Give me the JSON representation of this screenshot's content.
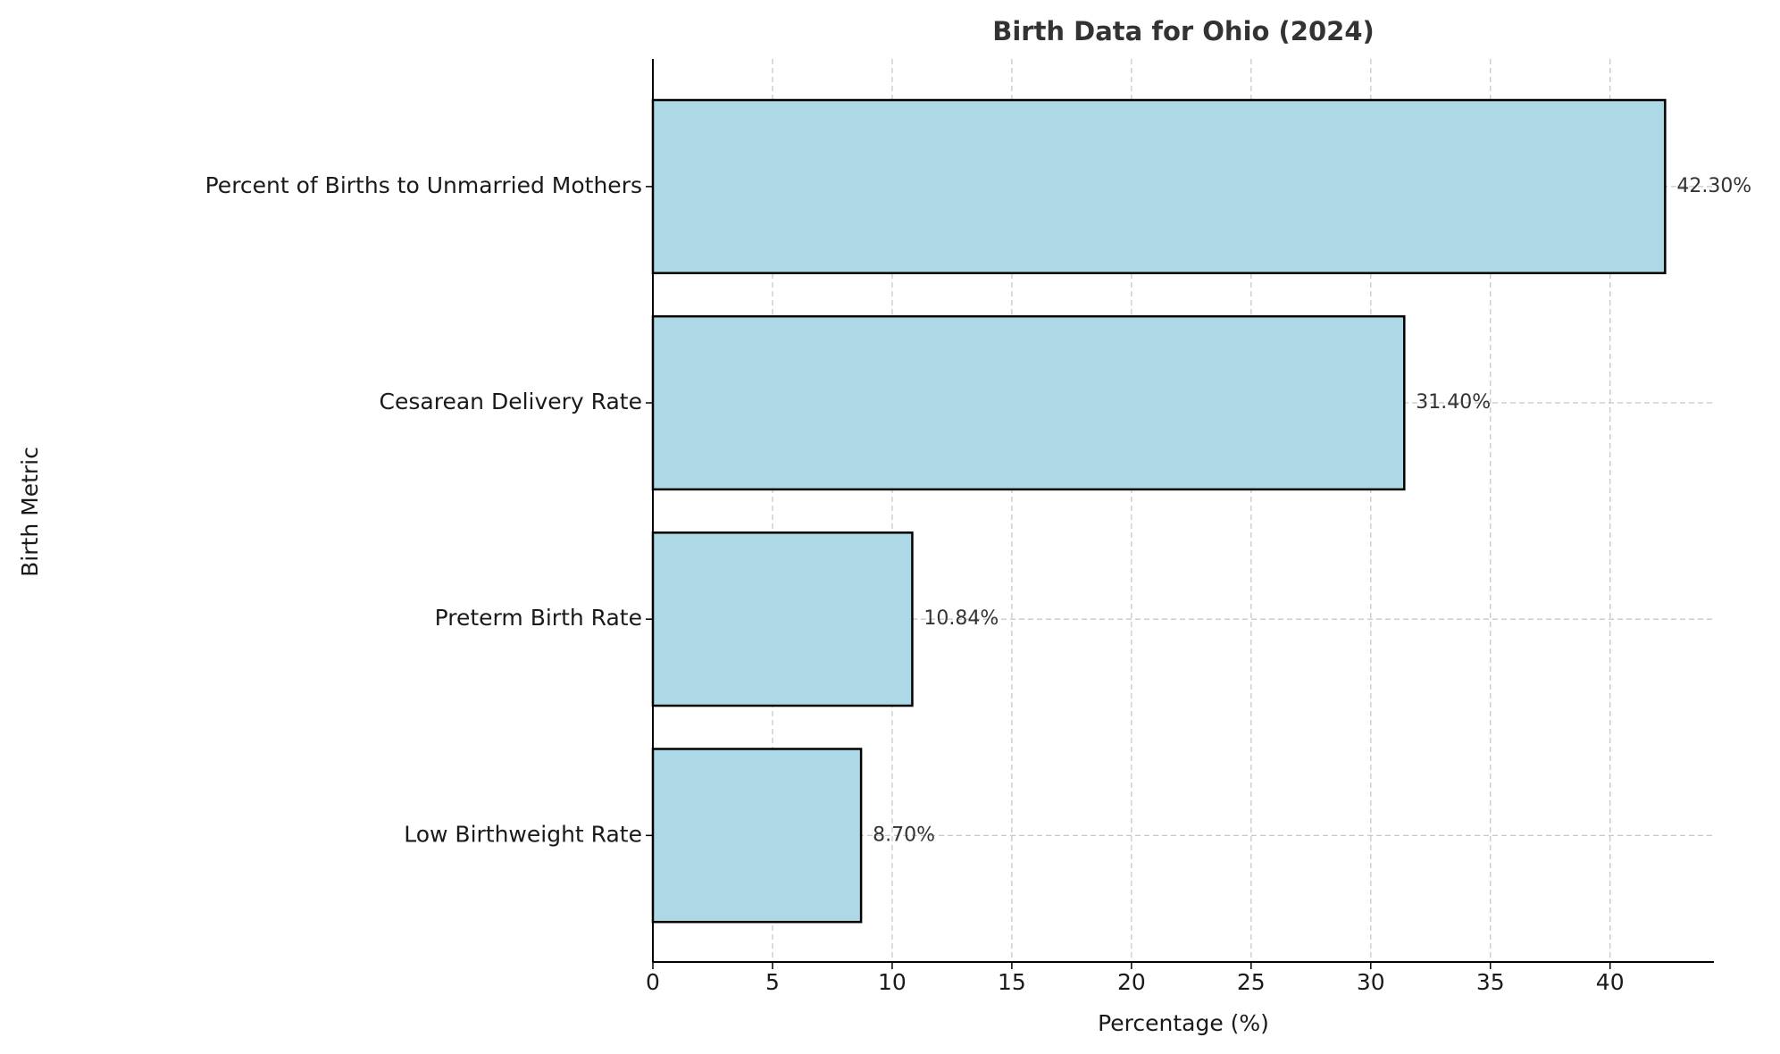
{
  "chart_data": {
    "type": "barh",
    "title": "Birth Data for Ohio (2024)",
    "x_label": "Percentage (%)",
    "y_label": "Birth Metric",
    "categories": [
      "Low Birthweight Rate",
      "Preterm Birth Rate",
      "Cesarean Delivery Rate",
      "Percent of Births to Unmarried Mothers"
    ],
    "values": [
      8.7,
      10.84,
      31.4,
      42.3
    ],
    "value_labels": [
      "8.70%",
      "10.84%",
      "31.40%",
      "42.30%"
    ],
    "color": "#add8e6",
    "edge_color": "#000000",
    "xlim": [
      0,
      44.34
    ],
    "xticks": [
      0,
      5,
      10,
      15,
      20,
      25,
      30,
      35,
      40
    ],
    "grid": true
  }
}
